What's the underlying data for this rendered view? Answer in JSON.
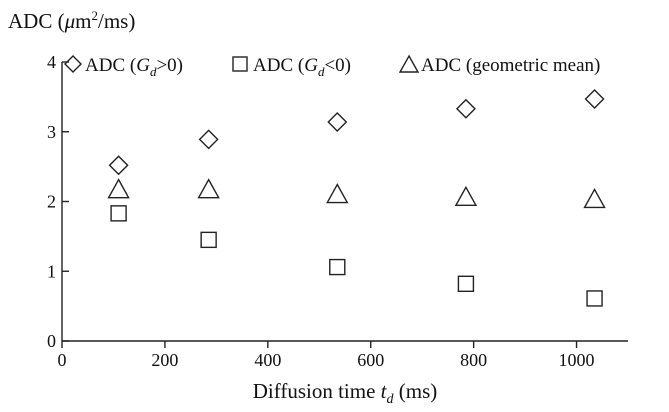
{
  "chart_data": {
    "type": "scatter",
    "ylabel": {
      "prefix": "ADC (",
      "mu": "μ",
      "m": "m",
      "sup": "2",
      "suffix": "/ms)"
    },
    "xlabel": {
      "prefix": "Diffusion time ",
      "var": "t",
      "sub": "d",
      "suffix": " (ms)"
    },
    "xlim": [
      0,
      1100
    ],
    "ylim": [
      0,
      4
    ],
    "xticks": [
      0,
      200,
      400,
      600,
      800,
      1000
    ],
    "yticks": [
      0,
      1,
      2,
      3,
      4
    ],
    "grid": false,
    "legend_position": "top",
    "series": [
      {
        "marker": "diamond",
        "legend": {
          "prefix": "ADC (",
          "var": "G",
          "sub": "d",
          "suffix": ">0)"
        },
        "x": [
          110,
          285,
          535,
          785,
          1035
        ],
        "y": [
          2.52,
          2.89,
          3.14,
          3.33,
          3.47
        ]
      },
      {
        "marker": "square",
        "legend": {
          "prefix": "ADC (",
          "var": "G",
          "sub": "d",
          "suffix": "<0)"
        },
        "x": [
          110,
          285,
          535,
          785,
          1035
        ],
        "y": [
          1.83,
          1.45,
          1.06,
          0.82,
          0.61
        ]
      },
      {
        "marker": "triangle",
        "legend": {
          "prefix": "ADC (geometric mean)",
          "var": "",
          "sub": "",
          "suffix": ""
        },
        "x": [
          110,
          285,
          535,
          785,
          1035
        ],
        "y": [
          2.17,
          2.17,
          2.1,
          2.06,
          2.03
        ]
      }
    ]
  }
}
